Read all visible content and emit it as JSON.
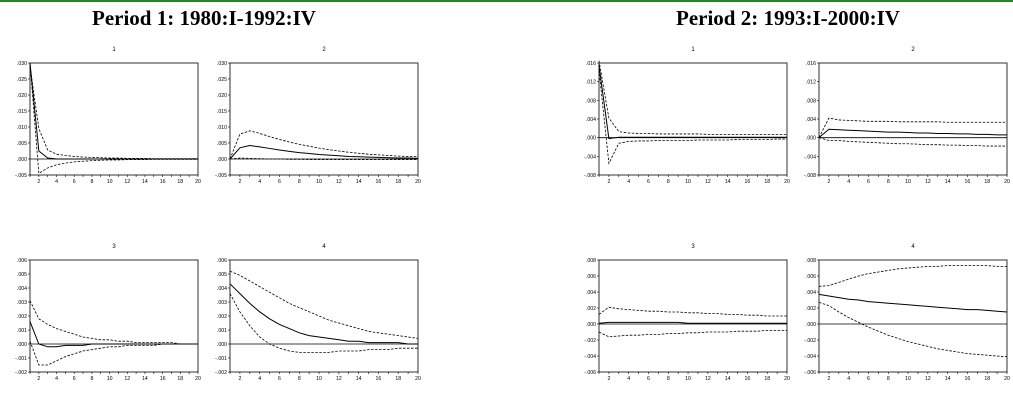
{
  "page": {
    "accent_color": "#1a8a1a",
    "period1_title": "Period 1: 1980:I-1992:IV",
    "period2_title": "Period 2: 1993:I-2000:IV"
  },
  "chart_data": [
    {
      "type": "line",
      "title": "1",
      "period": 1,
      "x": [
        1,
        2,
        3,
        4,
        5,
        6,
        7,
        8,
        9,
        10,
        11,
        12,
        13,
        14,
        15,
        16,
        17,
        18,
        19,
        20
      ],
      "xticks": [
        2,
        4,
        6,
        8,
        10,
        12,
        14,
        16,
        18,
        20
      ],
      "ylim": [
        -0.005,
        0.03
      ],
      "yticks": [
        -0.005,
        0,
        0.005,
        0.01,
        0.015,
        0.02,
        0.025,
        0.03
      ],
      "ytick_labels": [
        "-.005",
        ".000",
        ".005",
        ".010",
        ".015",
        ".020",
        ".025",
        ".030"
      ],
      "series": [
        {
          "style": "solid",
          "values": [
            0.03,
            0.0025,
            0.0003,
            0,
            0,
            0,
            0,
            0,
            0,
            0,
            0,
            0,
            0,
            0,
            0,
            0,
            0,
            0,
            0,
            0
          ]
        },
        {
          "style": "dashed",
          "values": [
            0.029,
            0.0095,
            0.0028,
            0.0015,
            0.0011,
            0.0008,
            0.0006,
            0.0005,
            0.0004,
            0.0003,
            0.0003,
            0.0002,
            0.0002,
            0.0002,
            0.0001,
            0.0001,
            0.0001,
            0.0001,
            0.0001,
            0.0001
          ]
        },
        {
          "style": "dashed",
          "values": [
            0.03,
            -0.0045,
            -0.0028,
            -0.0018,
            -0.0013,
            -0.0009,
            -0.0007,
            -0.0005,
            -0.0004,
            -0.0003,
            -0.0003,
            -0.0002,
            -0.0002,
            -0.0002,
            -0.0001,
            -0.0001,
            -0.0001,
            -0.0001,
            -0.0001,
            -0.0001
          ]
        }
      ]
    },
    {
      "type": "line",
      "title": "2",
      "period": 1,
      "x": [
        1,
        2,
        3,
        4,
        5,
        6,
        7,
        8,
        9,
        10,
        11,
        12,
        13,
        14,
        15,
        16,
        17,
        18,
        19,
        20
      ],
      "xticks": [
        2,
        4,
        6,
        8,
        10,
        12,
        14,
        16,
        18,
        20
      ],
      "ylim": [
        -0.005,
        0.03
      ],
      "yticks": [
        -0.005,
        0,
        0.005,
        0.01,
        0.015,
        0.02,
        0.025,
        0.03
      ],
      "ytick_labels": [
        "-.005",
        ".000",
        ".005",
        ".010",
        ".015",
        ".020",
        ".025",
        ".030"
      ],
      "series": [
        {
          "style": "solid",
          "values": [
            0,
            0.0035,
            0.0042,
            0.0038,
            0.0033,
            0.0028,
            0.0024,
            0.002,
            0.0017,
            0.0014,
            0.0012,
            0.001,
            0.0008,
            0.0007,
            0.0006,
            0.0005,
            0.0004,
            0.0003,
            0.0003,
            0.0002
          ]
        },
        {
          "style": "dashed",
          "values": [
            0,
            0.0078,
            0.0088,
            0.008,
            0.007,
            0.0061,
            0.0053,
            0.0046,
            0.004,
            0.0034,
            0.0029,
            0.0025,
            0.0021,
            0.0018,
            0.0015,
            0.0013,
            0.0011,
            0.0009,
            0.0008,
            0.0007
          ]
        },
        {
          "style": "dashed",
          "values": [
            0,
            0.0003,
            0.0002,
            0.0001,
            0,
            0,
            -0.0001,
            -0.0001,
            -0.0002,
            -0.0002,
            -0.0002,
            -0.0002,
            -0.0002,
            -0.0002,
            -0.0002,
            -0.0002,
            -0.0002,
            -0.0002,
            -0.0002,
            -0.0002
          ]
        }
      ]
    },
    {
      "type": "line",
      "title": "3",
      "period": 1,
      "x": [
        1,
        2,
        3,
        4,
        5,
        6,
        7,
        8,
        9,
        10,
        11,
        12,
        13,
        14,
        15,
        16,
        17,
        18,
        19,
        20
      ],
      "xticks": [
        2,
        4,
        6,
        8,
        10,
        12,
        14,
        16,
        18,
        20
      ],
      "ylim": [
        -0.002,
        0.006
      ],
      "yticks": [
        -0.002,
        -0.001,
        0,
        0.001,
        0.002,
        0.003,
        0.004,
        0.005,
        0.006
      ],
      "ytick_labels": [
        "-.002",
        "-.001",
        ".000",
        ".001",
        ".002",
        ".003",
        ".004",
        ".005",
        ".006"
      ],
      "series": [
        {
          "style": "solid",
          "values": [
            0.0016,
            0,
            -0.0002,
            -0.0002,
            -0.0001,
            -0.0001,
            -0.0001,
            0,
            0,
            0,
            0,
            0,
            0,
            0,
            0,
            0,
            0,
            0,
            0,
            0
          ]
        },
        {
          "style": "dashed",
          "values": [
            0.0031,
            0.0018,
            0.0014,
            0.0011,
            0.0009,
            0.0007,
            0.0005,
            0.0004,
            0.0003,
            0.0003,
            0.0002,
            0.0002,
            0.0001,
            0.0001,
            0.0001,
            0.0001,
            0.0001,
            0,
            0,
            0
          ]
        },
        {
          "style": "dashed",
          "values": [
            0.0002,
            -0.0015,
            -0.0015,
            -0.0012,
            -0.0009,
            -0.0007,
            -0.0005,
            -0.0004,
            -0.0003,
            -0.0002,
            -0.0002,
            -0.0001,
            -0.0001,
            -0.0001,
            -0.0001,
            0,
            0,
            0,
            0,
            0
          ]
        }
      ]
    },
    {
      "type": "line",
      "title": "4",
      "period": 1,
      "x": [
        1,
        2,
        3,
        4,
        5,
        6,
        7,
        8,
        9,
        10,
        11,
        12,
        13,
        14,
        15,
        16,
        17,
        18,
        19,
        20
      ],
      "xticks": [
        2,
        4,
        6,
        8,
        10,
        12,
        14,
        16,
        18,
        20
      ],
      "ylim": [
        -0.002,
        0.006
      ],
      "yticks": [
        -0.002,
        -0.001,
        0,
        0.001,
        0.002,
        0.003,
        0.004,
        0.005,
        0.006
      ],
      "ytick_labels": [
        "-.002",
        "-.001",
        ".000",
        ".001",
        ".002",
        ".003",
        ".004",
        ".005",
        ".006"
      ],
      "series": [
        {
          "style": "solid",
          "values": [
            0.0043,
            0.0036,
            0.0029,
            0.0023,
            0.0018,
            0.0014,
            0.0011,
            0.0008,
            0.0006,
            0.0005,
            0.0004,
            0.0003,
            0.0002,
            0.0002,
            0.0001,
            0.0001,
            0.0001,
            0.0001,
            0,
            0
          ]
        },
        {
          "style": "dashed",
          "values": [
            0.0052,
            0.0049,
            0.0045,
            0.0041,
            0.0037,
            0.0033,
            0.0029,
            0.0026,
            0.0023,
            0.002,
            0.0017,
            0.0015,
            0.0013,
            0.0011,
            0.0009,
            0.0008,
            0.0007,
            0.0006,
            0.0005,
            0.0004
          ]
        },
        {
          "style": "dashed",
          "values": [
            0.0036,
            0.0023,
            0.0013,
            0.0005,
            0,
            -0.0003,
            -0.0005,
            -0.0006,
            -0.0006,
            -0.0006,
            -0.0006,
            -0.0005,
            -0.0005,
            -0.0005,
            -0.0004,
            -0.0004,
            -0.0004,
            -0.0003,
            -0.0003,
            -0.0003
          ]
        }
      ]
    },
    {
      "type": "line",
      "title": "1",
      "period": 2,
      "x": [
        1,
        2,
        3,
        4,
        5,
        6,
        7,
        8,
        9,
        10,
        11,
        12,
        13,
        14,
        15,
        16,
        17,
        18,
        19,
        20
      ],
      "xticks": [
        2,
        4,
        6,
        8,
        10,
        12,
        14,
        16,
        18,
        20
      ],
      "ylim": [
        -0.008,
        0.016
      ],
      "yticks": [
        -0.008,
        -0.004,
        0,
        0.004,
        0.008,
        0.012,
        0.016
      ],
      "ytick_labels": [
        "-.008",
        "-.004",
        ".000",
        ".004",
        ".008",
        ".012",
        ".016"
      ],
      "series": [
        {
          "style": "solid",
          "values": [
            0.0155,
            -0.0002,
            0.0001,
            0.0001,
            0.0001,
            0.0001,
            0.0001,
            0.0001,
            0.0001,
            0.0001,
            0.0001,
            0.0001,
            0.0001,
            0.0001,
            0.0001,
            0.0001,
            0.0001,
            0.0001,
            0.0001,
            0.0001
          ]
        },
        {
          "style": "dashed",
          "values": [
            0.0165,
            0.0042,
            0.0013,
            0.001,
            0.0009,
            0.0009,
            0.0008,
            0.0008,
            0.0008,
            0.0008,
            0.0008,
            0.0007,
            0.0007,
            0.0007,
            0.0007,
            0.0007,
            0.0007,
            0.0007,
            0.0007,
            0.0007
          ]
        },
        {
          "style": "dashed",
          "values": [
            0.0145,
            -0.0055,
            -0.0012,
            -0.0008,
            -0.0007,
            -0.0007,
            -0.0006,
            -0.0006,
            -0.0006,
            -0.0006,
            -0.0005,
            -0.0005,
            -0.0005,
            -0.0005,
            -0.0004,
            -0.0004,
            -0.0004,
            -0.0004,
            -0.0003,
            -0.0003
          ]
        }
      ]
    },
    {
      "type": "line",
      "title": "2",
      "period": 2,
      "x": [
        1,
        2,
        3,
        4,
        5,
        6,
        7,
        8,
        9,
        10,
        11,
        12,
        13,
        14,
        15,
        16,
        17,
        18,
        19,
        20
      ],
      "xticks": [
        2,
        4,
        6,
        8,
        10,
        12,
        14,
        16,
        18,
        20
      ],
      "ylim": [
        -0.008,
        0.016
      ],
      "yticks": [
        -0.008,
        -0.004,
        0,
        0.004,
        0.008,
        0.012,
        0.016
      ],
      "ytick_labels": [
        "-.008",
        "-.004",
        ".000",
        ".004",
        ".008",
        ".012",
        ".016"
      ],
      "series": [
        {
          "style": "solid",
          "values": [
            0,
            0.0018,
            0.0017,
            0.0016,
            0.0015,
            0.0014,
            0.0013,
            0.0012,
            0.0012,
            0.0011,
            0.001,
            0.001,
            0.0009,
            0.0009,
            0.0008,
            0.0008,
            0.0007,
            0.0007,
            0.0006,
            0.0006
          ]
        },
        {
          "style": "dashed",
          "values": [
            0,
            0.0042,
            0.0038,
            0.0037,
            0.0036,
            0.0035,
            0.0035,
            0.0035,
            0.0034,
            0.0034,
            0.0034,
            0.0034,
            0.0034,
            0.0033,
            0.0033,
            0.0033,
            0.0033,
            0.0033,
            0.0033,
            0.0033
          ]
        },
        {
          "style": "dashed",
          "values": [
            0,
            -0.0006,
            -0.0006,
            -0.0008,
            -0.0009,
            -0.001,
            -0.0011,
            -0.0012,
            -0.0013,
            -0.0013,
            -0.0014,
            -0.0015,
            -0.0015,
            -0.0016,
            -0.0016,
            -0.0017,
            -0.0017,
            -0.0018,
            -0.0018,
            -0.0018
          ]
        }
      ]
    },
    {
      "type": "line",
      "title": "3",
      "period": 2,
      "x": [
        1,
        2,
        3,
        4,
        5,
        6,
        7,
        8,
        9,
        10,
        11,
        12,
        13,
        14,
        15,
        16,
        17,
        18,
        19,
        20
      ],
      "xticks": [
        2,
        4,
        6,
        8,
        10,
        12,
        14,
        16,
        18,
        20
      ],
      "ylim": [
        -0.006,
        0.008
      ],
      "yticks": [
        -0.006,
        -0.004,
        -0.002,
        0,
        0.002,
        0.004,
        0.006,
        0.008
      ],
      "ytick_labels": [
        "-.006",
        "-.004",
        "-.002",
        ".000",
        ".002",
        ".004",
        ".006",
        ".008"
      ],
      "series": [
        {
          "style": "solid",
          "values": [
            0.0001,
            0.0002,
            0.0002,
            0.0002,
            0.0002,
            0.0002,
            0.0002,
            0.0002,
            0.0002,
            0.0001,
            0.0001,
            0.0001,
            0.0001,
            0.0001,
            0.0001,
            0.0001,
            0.0001,
            0.0001,
            0.0001,
            0.0001
          ]
        },
        {
          "style": "dashed",
          "values": [
            0.0012,
            0.0021,
            0.0019,
            0.0018,
            0.0017,
            0.0016,
            0.0016,
            0.0015,
            0.0015,
            0.0014,
            0.0014,
            0.0013,
            0.0013,
            0.0012,
            0.0012,
            0.0011,
            0.0011,
            0.001,
            0.001,
            0.001
          ]
        },
        {
          "style": "dashed",
          "values": [
            -0.001,
            -0.0016,
            -0.0015,
            -0.0014,
            -0.0014,
            -0.0013,
            -0.0013,
            -0.0012,
            -0.0012,
            -0.0011,
            -0.0011,
            -0.001,
            -0.001,
            -0.001,
            -0.0009,
            -0.0009,
            -0.0009,
            -0.0008,
            -0.0008,
            -0.0008
          ]
        }
      ]
    },
    {
      "type": "line",
      "title": "4",
      "period": 2,
      "x": [
        1,
        2,
        3,
        4,
        5,
        6,
        7,
        8,
        9,
        10,
        11,
        12,
        13,
        14,
        15,
        16,
        17,
        18,
        19,
        20
      ],
      "xticks": [
        2,
        4,
        6,
        8,
        10,
        12,
        14,
        16,
        18,
        20
      ],
      "ylim": [
        -0.006,
        0.008
      ],
      "yticks": [
        -0.006,
        -0.004,
        -0.002,
        0,
        0.002,
        0.004,
        0.006,
        0.008
      ],
      "ytick_labels": [
        "-.006",
        "-.004",
        "-.002",
        ".000",
        ".002",
        ".004",
        ".006",
        ".008"
      ],
      "series": [
        {
          "style": "solid",
          "values": [
            0.0037,
            0.0035,
            0.0033,
            0.0031,
            0.003,
            0.0028,
            0.0027,
            0.0026,
            0.0025,
            0.0024,
            0.0023,
            0.0022,
            0.0021,
            0.002,
            0.0019,
            0.0018,
            0.0018,
            0.0017,
            0.0016,
            0.0015
          ]
        },
        {
          "style": "dashed",
          "values": [
            0.0047,
            0.0048,
            0.0052,
            0.0056,
            0.006,
            0.0063,
            0.0065,
            0.0067,
            0.0069,
            0.007,
            0.0071,
            0.0072,
            0.0072,
            0.0073,
            0.0073,
            0.0073,
            0.0073,
            0.0073,
            0.0072,
            0.0072
          ]
        },
        {
          "style": "dashed",
          "values": [
            0.0027,
            0.0023,
            0.0015,
            0.0008,
            0.0002,
            -0.0004,
            -0.0009,
            -0.0014,
            -0.0018,
            -0.0022,
            -0.0025,
            -0.0028,
            -0.0031,
            -0.0033,
            -0.0035,
            -0.0037,
            -0.0038,
            -0.0039,
            -0.004,
            -0.0041
          ]
        }
      ]
    }
  ]
}
